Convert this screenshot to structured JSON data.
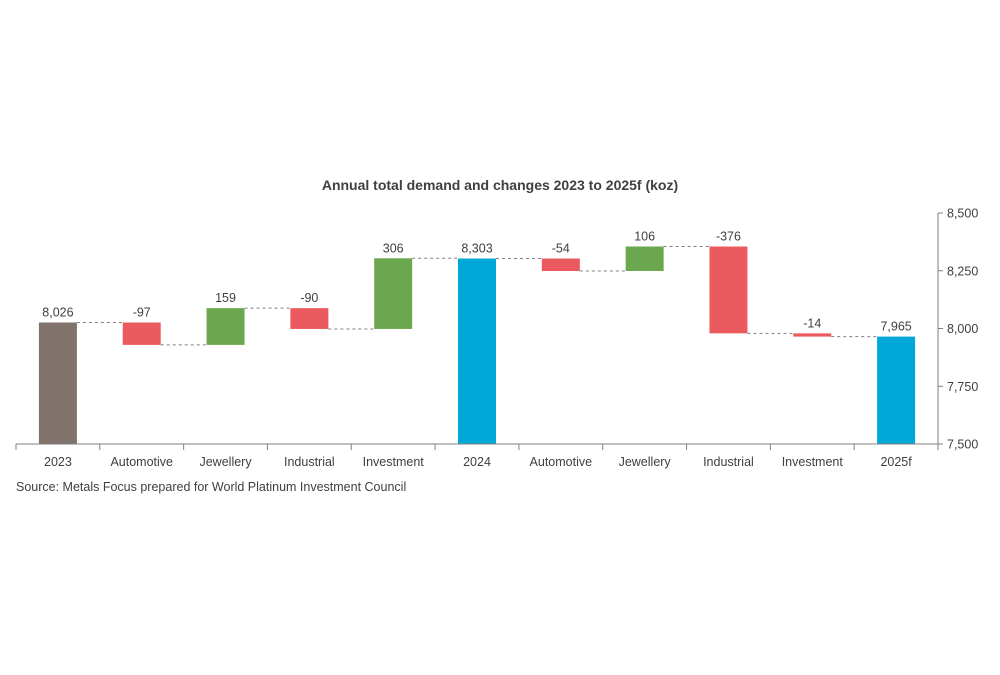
{
  "chart_data": {
    "type": "waterfall",
    "title": "Annual total demand and changes 2023 to 2025f (koz)",
    "source": "Source: Metals Focus prepared for World Platinum Investment Council",
    "ylim": [
      7500,
      8500
    ],
    "yticks": [
      7500,
      7750,
      8000,
      8250,
      8500
    ],
    "ytick_labels": [
      "7,500",
      "7,750",
      "8,000",
      "8,250",
      "8,500"
    ],
    "y_axis_side": "right",
    "categories": [
      "2023",
      "Automotive",
      "Jewellery",
      "Industrial",
      "Investment",
      "2024",
      "Automotive",
      "Jewellery",
      "Industrial",
      "Investment",
      "2025f"
    ],
    "bars": [
      {
        "category": "2023",
        "kind": "total",
        "value": 8026,
        "label": "8,026"
      },
      {
        "category": "Automotive",
        "kind": "change",
        "value": -97,
        "label": "-97"
      },
      {
        "category": "Jewellery",
        "kind": "change",
        "value": 159,
        "label": "159"
      },
      {
        "category": "Industrial",
        "kind": "change",
        "value": -90,
        "label": "-90"
      },
      {
        "category": "Investment",
        "kind": "change",
        "value": 306,
        "label": "306"
      },
      {
        "category": "2024",
        "kind": "total",
        "value": 8303,
        "label": "8,303"
      },
      {
        "category": "Automotive",
        "kind": "change",
        "value": -54,
        "label": "-54"
      },
      {
        "category": "Jewellery",
        "kind": "change",
        "value": 106,
        "label": "106"
      },
      {
        "category": "Industrial",
        "kind": "change",
        "value": -376,
        "label": "-376"
      },
      {
        "category": "Investment",
        "kind": "change",
        "value": -14,
        "label": "-14"
      },
      {
        "category": "2025f",
        "kind": "total",
        "value": 7965,
        "label": "7,965"
      }
    ],
    "colors": {
      "start_total": "#7f736c",
      "total": "#00a8d8",
      "increase": "#6ba74f",
      "decrease": "#eb5a5e",
      "axis": "#7f7f7f",
      "connector": "#808080",
      "text": "#404040"
    }
  }
}
